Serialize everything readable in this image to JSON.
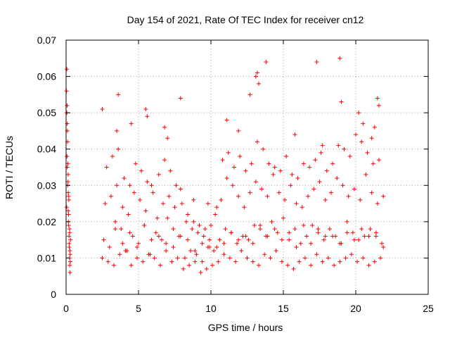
{
  "chart_data": {
    "type": "scatter",
    "title": "Day 154 of 2021, Rate Of TEC Index for receiver cn12",
    "xlabel": "GPS time / hours",
    "ylabel": "ROTI / TECUs",
    "xlim": [
      0,
      25
    ],
    "ylim": [
      0,
      0.07
    ],
    "xticks": [
      0,
      5,
      10,
      15,
      20,
      25
    ],
    "yticks": [
      0,
      0.01,
      0.02,
      0.03,
      0.04,
      0.05,
      0.06,
      0.07
    ],
    "grid": true,
    "legend": "none",
    "marker": "plus",
    "color": "#ff0000",
    "series": [
      {
        "x": [
          0.03,
          0.05,
          0.07,
          0.08,
          0.1,
          0.12,
          0.13,
          0.15,
          0.17,
          0.18,
          0.2,
          0.22,
          0.23,
          0.25,
          0.27,
          0.28,
          0.3,
          0.04,
          0.09,
          0.14,
          0.19,
          0.24,
          0.29,
          0.06,
          0.11,
          0.16,
          0.21,
          0.26,
          0.08,
          0.18,
          0.05,
          0.15,
          0.25,
          2.6,
          3.0,
          3.4,
          3.8,
          4.2,
          4.6,
          5.0,
          5.4,
          5.8,
          6.2,
          6.6,
          7.0,
          7.4,
          7.8,
          8.2,
          8.6,
          9.0,
          9.4,
          9.8,
          10.2,
          10.6,
          11.0,
          11.4,
          11.8,
          12.2,
          12.6,
          13.0,
          13.4,
          13.8,
          14.2,
          14.6,
          15.0,
          15.4,
          15.8,
          16.2,
          16.6,
          17.0,
          17.4,
          17.8,
          18.2,
          18.6,
          19.0,
          19.4,
          19.8,
          20.2,
          20.6,
          21.0,
          21.4,
          21.8,
          2.5,
          2.9,
          3.3,
          3.7,
          4.1,
          4.5,
          4.9,
          5.3,
          5.7,
          6.1,
          6.5,
          6.9,
          7.3,
          7.7,
          8.1,
          8.5,
          8.9,
          9.3,
          9.7,
          10.1,
          10.5,
          10.9,
          11.3,
          11.7,
          12.1,
          12.5,
          12.9,
          13.3,
          13.7,
          14.1,
          14.5,
          14.9,
          15.3,
          15.7,
          16.1,
          16.5,
          16.9,
          17.3,
          17.7,
          18.1,
          18.5,
          18.9,
          19.3,
          19.7,
          20.1,
          20.5,
          20.9,
          21.3,
          21.7,
          2.7,
          3.1,
          3.5,
          3.9,
          4.3,
          4.7,
          5.1,
          5.5,
          5.9,
          6.3,
          6.7,
          7.1,
          7.5,
          7.9,
          8.3,
          8.7,
          9.1,
          9.5,
          9.9,
          10.3,
          10.7,
          11.1,
          11.5,
          11.9,
          12.3,
          12.7,
          13.1,
          13.5,
          13.9,
          14.3,
          14.7,
          15.1,
          15.5,
          15.9,
          16.3,
          16.7,
          17.1,
          17.5,
          17.9,
          18.3,
          18.7,
          19.1,
          19.5,
          19.9,
          20.3,
          20.7,
          21.1,
          21.5,
          21.9,
          2.8,
          3.2,
          3.6,
          4.0,
          4.4,
          4.8,
          5.2,
          5.6,
          6.0,
          6.4,
          6.8,
          7.2,
          7.6,
          8.0,
          8.4,
          8.8,
          9.2,
          9.6,
          10.0,
          10.4,
          10.8,
          11.2,
          11.6,
          12.0,
          12.4,
          12.8,
          13.2,
          13.6,
          14.0,
          14.4,
          14.8,
          15.2,
          15.6,
          16.0,
          16.4,
          16.8,
          17.2,
          17.6,
          18.0,
          18.4,
          18.8,
          19.2,
          19.6,
          20.0,
          20.4,
          20.8,
          21.2,
          21.6,
          2.5,
          3.5,
          3.6,
          5.5,
          5.6,
          6.8,
          7.0,
          7.9,
          11.1,
          11.9,
          12.7,
          13.1,
          13.2,
          13.3,
          13.8,
          17.3,
          18.9,
          19.0,
          20.2,
          20.5,
          21.3,
          21.5,
          21.6,
          21.1,
          4.5,
          9.8,
          8.8,
          15.8,
          17.7,
          3.4,
          4.4,
          5.4,
          6.4,
          7.4,
          8.4,
          9.4,
          10.4,
          11.4,
          12.4,
          13.4,
          14.4,
          15.4,
          16.4,
          17.4,
          18.4,
          19.4,
          20.4,
          21.4,
          3.9,
          4.9,
          5.9,
          6.9,
          7.9,
          8.9,
          9.9,
          10.9,
          11.9,
          12.9,
          13.9,
          14.9,
          15.9,
          16.9,
          17.9,
          18.9,
          19.9,
          20.9,
          21.9
        ],
        "y": [
          0.056,
          0.062,
          0.052,
          0.047,
          0.042,
          0.036,
          0.031,
          0.028,
          0.022,
          0.019,
          0.016,
          0.013,
          0.01,
          0.008,
          0.006,
          0.011,
          0.015,
          0.024,
          0.045,
          0.033,
          0.026,
          0.018,
          0.009,
          0.038,
          0.03,
          0.02,
          0.014,
          0.012,
          0.035,
          0.027,
          0.05,
          0.023,
          0.017,
          0.015,
          0.013,
          0.02,
          0.018,
          0.012,
          0.016,
          0.014,
          0.019,
          0.011,
          0.017,
          0.015,
          0.021,
          0.013,
          0.016,
          0.01,
          0.012,
          0.011,
          0.009,
          0.013,
          0.012,
          0.015,
          0.018,
          0.017,
          0.014,
          0.016,
          0.015,
          0.019,
          0.018,
          0.016,
          0.02,
          0.017,
          0.021,
          0.015,
          0.018,
          0.014,
          0.016,
          0.019,
          0.017,
          0.015,
          0.018,
          0.016,
          0.014,
          0.02,
          0.017,
          0.015,
          0.016,
          0.018,
          0.017,
          0.014,
          0.01,
          0.009,
          0.008,
          0.011,
          0.012,
          0.008,
          0.01,
          0.009,
          0.011,
          0.01,
          0.008,
          0.012,
          0.009,
          0.01,
          0.007,
          0.008,
          0.009,
          0.006,
          0.007,
          0.008,
          0.009,
          0.011,
          0.01,
          0.009,
          0.012,
          0.01,
          0.009,
          0.008,
          0.011,
          0.01,
          0.012,
          0.009,
          0.008,
          0.007,
          0.009,
          0.01,
          0.008,
          0.011,
          0.009,
          0.01,
          0.008,
          0.009,
          0.01,
          0.011,
          0.009,
          0.01,
          0.008,
          0.009,
          0.01,
          0.025,
          0.027,
          0.03,
          0.024,
          0.022,
          0.028,
          0.026,
          0.023,
          0.03,
          0.021,
          0.025,
          0.027,
          0.024,
          0.029,
          0.02,
          0.018,
          0.017,
          0.016,
          0.015,
          0.022,
          0.026,
          0.032,
          0.03,
          0.027,
          0.024,
          0.028,
          0.031,
          0.029,
          0.027,
          0.033,
          0.028,
          0.026,
          0.03,
          0.025,
          0.024,
          0.027,
          0.029,
          0.031,
          0.026,
          0.028,
          0.032,
          0.03,
          0.027,
          0.029,
          0.026,
          0.033,
          0.028,
          0.025,
          0.027,
          0.035,
          0.038,
          0.04,
          0.032,
          0.03,
          0.036,
          0.034,
          0.031,
          0.028,
          0.033,
          0.037,
          0.034,
          0.03,
          0.025,
          0.022,
          0.02,
          0.019,
          0.018,
          0.019,
          0.024,
          0.037,
          0.039,
          0.035,
          0.038,
          0.034,
          0.036,
          0.042,
          0.04,
          0.036,
          0.035,
          0.034,
          0.038,
          0.033,
          0.032,
          0.036,
          0.035,
          0.037,
          0.039,
          0.034,
          0.036,
          0.041,
          0.04,
          0.038,
          0.044,
          0.042,
          0.039,
          0.036,
          0.037,
          0.051,
          0.045,
          0.055,
          0.051,
          0.049,
          0.046,
          0.043,
          0.054,
          0.048,
          0.045,
          0.055,
          0.06,
          0.061,
          0.058,
          0.064,
          0.064,
          0.065,
          0.053,
          0.05,
          0.047,
          0.046,
          0.054,
          0.052,
          0.043,
          0.047,
          0.025,
          0.026,
          0.044,
          0.041,
          0.018,
          0.017,
          0.019,
          0.016,
          0.018,
          0.015,
          0.014,
          0.013,
          0.017,
          0.016,
          0.019,
          0.018,
          0.017,
          0.019,
          0.018,
          0.016,
          0.017,
          0.018,
          0.016,
          0.014,
          0.013,
          0.015,
          0.014,
          0.016,
          0.012,
          0.013,
          0.014,
          0.015,
          0.014,
          0.016,
          0.015,
          0.013,
          0.014,
          0.016,
          0.014,
          0.015,
          0.016,
          0.013
        ]
      }
    ]
  }
}
